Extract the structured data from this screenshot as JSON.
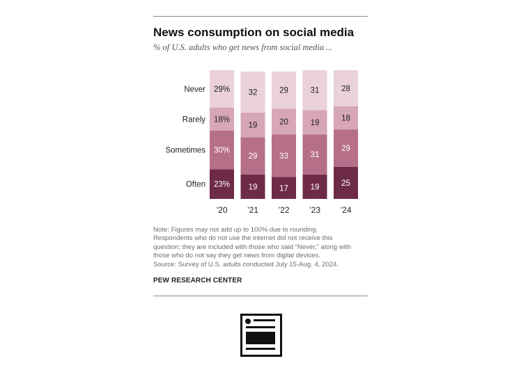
{
  "header": {
    "title": "News consumption on social media",
    "subtitle": "% of U.S. adults who get news from social media ..."
  },
  "chart_data": {
    "type": "bar",
    "stacked": true,
    "categories": [
      "’20",
      "’21",
      "’22",
      "’23",
      "’24"
    ],
    "series": [
      {
        "name": "Often",
        "values": [
          23,
          19,
          17,
          19,
          25
        ],
        "labels": [
          "23%",
          "19",
          "17",
          "19",
          "25"
        ],
        "color": "#6e2b47"
      },
      {
        "name": "Sometimes",
        "values": [
          30,
          29,
          33,
          31,
          29
        ],
        "labels": [
          "30%",
          "29",
          "33",
          "31",
          "29"
        ],
        "color": "#b66f89"
      },
      {
        "name": "Rarely",
        "values": [
          18,
          19,
          20,
          19,
          18
        ],
        "labels": [
          "18%",
          "19",
          "20",
          "19",
          "18"
        ],
        "color": "#d7a6b7"
      },
      {
        "name": "Never",
        "values": [
          29,
          32,
          29,
          31,
          28
        ],
        "labels": [
          "29%",
          "32",
          "29",
          "31",
          "28"
        ],
        "color": "#ead1da"
      }
    ],
    "ylim": [
      0,
      100
    ],
    "grid": false,
    "legend": "left"
  },
  "note": {
    "lines": [
      "Note: Figures may not add up to 100% due to rounding.",
      "Respondents who do not use the internet did not receive this",
      "question; they are included with those who said “Never,” along with",
      "those who do not say they get news from digital devices.",
      "Source: Survey of U.S. adults conducted July 15-Aug. 4, 2024."
    ]
  },
  "footer": {
    "org": "PEW RESEARCH CENTER"
  },
  "icons": {
    "embed": "article-icon"
  }
}
